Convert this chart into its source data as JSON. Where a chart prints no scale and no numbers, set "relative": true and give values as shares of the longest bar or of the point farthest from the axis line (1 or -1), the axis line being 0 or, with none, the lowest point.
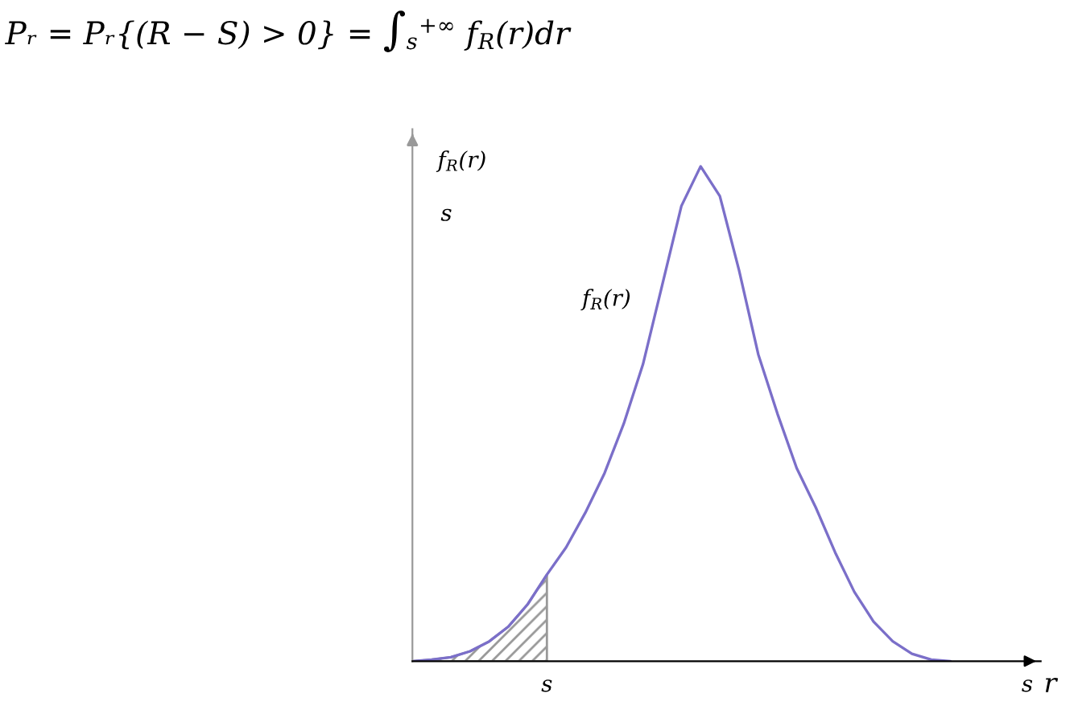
{
  "chart_data": {
    "type": "line",
    "relative": true,
    "title": "Pᵣ = Pᵣ{(R − S) > 0} = ∫$_{s}$$^{+∞}$ f$_{R}$(r)dr",
    "ylabel": "f$_{R}$(r)",
    "xlabel": "r",
    "annotations": [
      "s",
      "f$_{R}$(r)"
    ],
    "categories": [
      null,
      null,
      null,
      null,
      null,
      null,
      null,
      "s",
      null,
      null,
      null,
      null,
      null,
      null,
      null,
      null,
      null,
      null,
      null,
      null,
      null,
      null,
      null,
      null,
      null,
      null,
      null,
      null,
      null,
      null,
      null,
      null,
      "s"
    ],
    "series": [
      {
        "color": "#7b6fc9",
        "values": [
          0,
          0.003,
          0.008,
          0.02,
          0.04,
          0.07,
          0.115,
          0.175,
          0.23,
          0.3,
          0.38,
          0.48,
          0.6,
          0.76,
          0.92,
          1.0,
          0.94,
          0.79,
          0.62,
          0.5,
          0.39,
          0.31,
          0.22,
          0.14,
          0.08,
          0.04,
          0.015,
          0.003,
          0,
          null,
          null,
          null,
          null
        ]
      },
      {
        "type": "area",
        "color": "#999999",
        "values": [
          0,
          0.003,
          0.008,
          0.02,
          0.04,
          0.07,
          0.115,
          0.175,
          null,
          null,
          null,
          null,
          null,
          null,
          null,
          null,
          null,
          null,
          null,
          null,
          null,
          null,
          null,
          null,
          null,
          null,
          null,
          null,
          null,
          null,
          null,
          null,
          null
        ]
      }
    ],
    "grid": false,
    "legend": false
  }
}
